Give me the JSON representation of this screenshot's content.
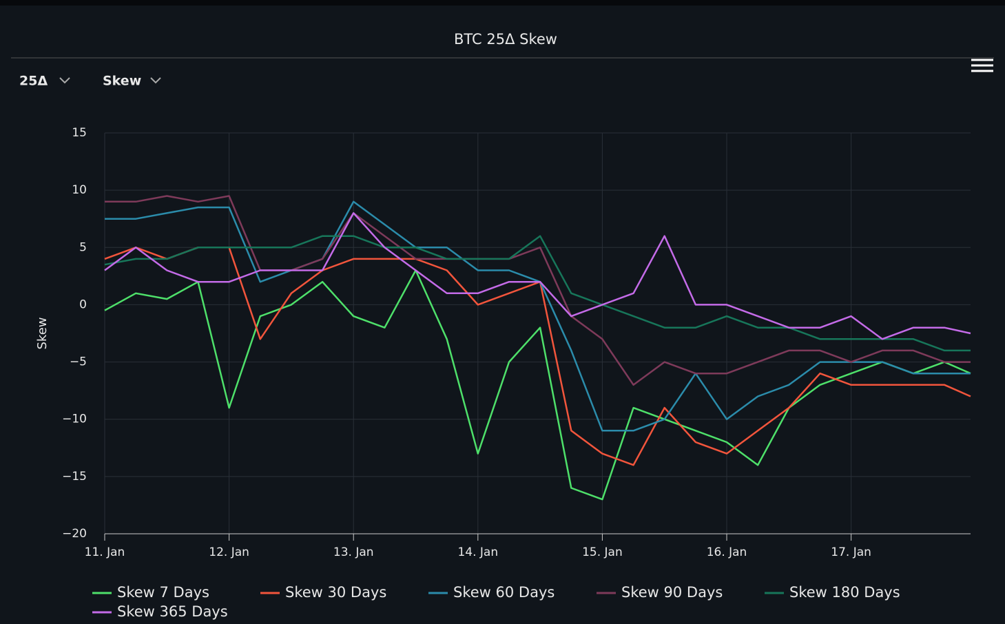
{
  "chart_data": {
    "type": "line",
    "title": "BTC 25Δ Skew",
    "controls": [
      "25Δ",
      "Skew"
    ],
    "y_label": "Skew",
    "x": [
      11,
      11.25,
      11.5,
      11.75,
      12,
      12.25,
      12.5,
      12.75,
      13,
      13.25,
      13.5,
      13.75,
      14,
      14.25,
      14.5,
      14.75,
      15,
      15.25,
      15.5,
      15.75,
      16,
      16.25,
      16.5,
      16.75,
      17,
      17.25,
      17.5,
      17.75,
      17.96
    ],
    "xlim": [
      11,
      17.96
    ],
    "xticks": [
      {
        "value": 11,
        "label": "11. Jan"
      },
      {
        "value": 12,
        "label": "12. Jan"
      },
      {
        "value": 13,
        "label": "13. Jan"
      },
      {
        "value": 14,
        "label": "14. Jan"
      },
      {
        "value": 15,
        "label": "15. Jan"
      },
      {
        "value": 16,
        "label": "16. Jan"
      },
      {
        "value": 17,
        "label": "17. Jan"
      }
    ],
    "ylim": [
      -20,
      15
    ],
    "yticks": [
      {
        "value": -20,
        "label": "−20"
      },
      {
        "value": -15,
        "label": "−15"
      },
      {
        "value": -10,
        "label": "−10"
      },
      {
        "value": -5,
        "label": "−5"
      },
      0,
      5,
      10,
      15
    ],
    "grid": true,
    "series": [
      {
        "name": "Skew 7 Days",
        "color": "#4ee06a",
        "values": [
          -0.5,
          1,
          0.5,
          2,
          -9,
          -1,
          0,
          2,
          -1,
          -2,
          3,
          -3,
          -13,
          -5,
          -2,
          -16,
          -17,
          -9,
          -10,
          -11,
          -12,
          -14,
          -9,
          -7,
          -6,
          -5,
          -6,
          -5,
          -6
        ]
      },
      {
        "name": "Skew 30 Days",
        "color": "#f2553c",
        "values": [
          4,
          5,
          4,
          5,
          5,
          -3,
          1,
          3,
          4,
          4,
          4,
          3,
          0,
          1,
          2,
          -11,
          -13,
          -14,
          -9,
          -12,
          -13,
          -11,
          -9,
          -6,
          -7,
          -7,
          -7,
          -7,
          -8
        ]
      },
      {
        "name": "Skew 60 Days",
        "color": "#2b8cab",
        "values": [
          7.5,
          7.5,
          8,
          8.5,
          8.5,
          2,
          3,
          4,
          9,
          7,
          5,
          5,
          3,
          3,
          2,
          -4,
          -11,
          -11,
          -10,
          -6,
          -10,
          -8,
          -7,
          -5,
          -5,
          -5,
          -6,
          -6,
          -6
        ]
      },
      {
        "name": "Skew 90 Days",
        "color": "#7e3a5a",
        "values": [
          9,
          9,
          9.5,
          9,
          9.5,
          3,
          3,
          4,
          8,
          6,
          4,
          4,
          4,
          4,
          5,
          -1,
          -3,
          -7,
          -5,
          -6,
          -6,
          -5,
          -4,
          -4,
          -5,
          -4,
          -4,
          -5,
          -5
        ]
      },
      {
        "name": "Skew 180 Days",
        "color": "#17765a",
        "values": [
          3.5,
          4,
          4,
          5,
          5,
          5,
          5,
          6,
          6,
          5,
          5,
          4,
          4,
          4,
          6,
          1,
          0,
          -1,
          -2,
          -2,
          -1,
          -2,
          -2,
          -3,
          -3,
          -3,
          -3,
          -4,
          -4
        ]
      },
      {
        "name": "Skew 365 Days",
        "color": "#c46be8",
        "values": [
          3,
          5,
          3,
          2,
          2,
          3,
          3,
          3,
          8,
          5,
          3,
          1,
          1,
          2,
          2,
          -1,
          0,
          1,
          6,
          0,
          0,
          -1,
          -2,
          -2,
          -1,
          -3,
          -2,
          -2,
          -2.5
        ]
      }
    ]
  }
}
